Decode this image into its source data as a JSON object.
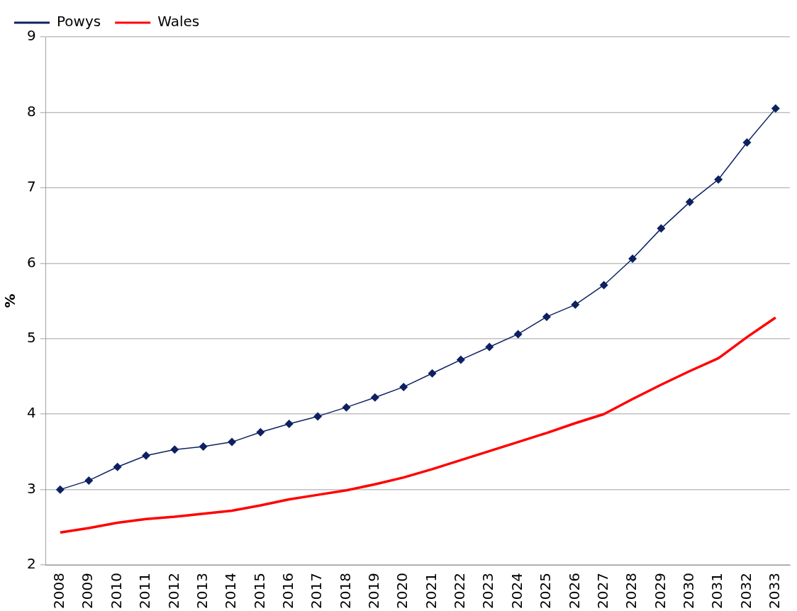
{
  "chart_data": {
    "type": "line",
    "ylabel": "%",
    "categories": [
      "2008",
      "2009",
      "2010",
      "2011",
      "2012",
      "2013",
      "2014",
      "2015",
      "2016",
      "2017",
      "2018",
      "2019",
      "2020",
      "2021",
      "2022",
      "2023",
      "2024",
      "2025",
      "2026",
      "2027",
      "2028",
      "2029",
      "2030",
      "2031",
      "2032",
      "2033"
    ],
    "series": [
      {
        "name": "Powys",
        "color": "#0d2161",
        "marker": "diamond",
        "values": [
          3.0,
          3.12,
          3.3,
          3.45,
          3.53,
          3.57,
          3.63,
          3.76,
          3.87,
          3.97,
          4.09,
          4.22,
          4.36,
          4.54,
          4.72,
          4.89,
          5.06,
          5.29,
          5.45,
          5.71,
          6.06,
          6.46,
          6.81,
          7.11,
          7.6,
          8.05
        ]
      },
      {
        "name": "Wales",
        "color": "#ff0000",
        "marker": "none",
        "values": [
          2.43,
          2.49,
          2.56,
          2.61,
          2.64,
          2.68,
          2.72,
          2.79,
          2.87,
          2.93,
          2.99,
          3.07,
          3.16,
          3.27,
          3.39,
          3.51,
          3.63,
          3.75,
          3.88,
          4.0,
          4.2,
          4.39,
          4.57,
          4.74,
          5.02,
          5.28
        ]
      }
    ],
    "ylim": [
      2,
      9
    ],
    "yticks": [
      2,
      3,
      4,
      5,
      6,
      7,
      8,
      9
    ],
    "grid": "y",
    "legend": "top left"
  }
}
